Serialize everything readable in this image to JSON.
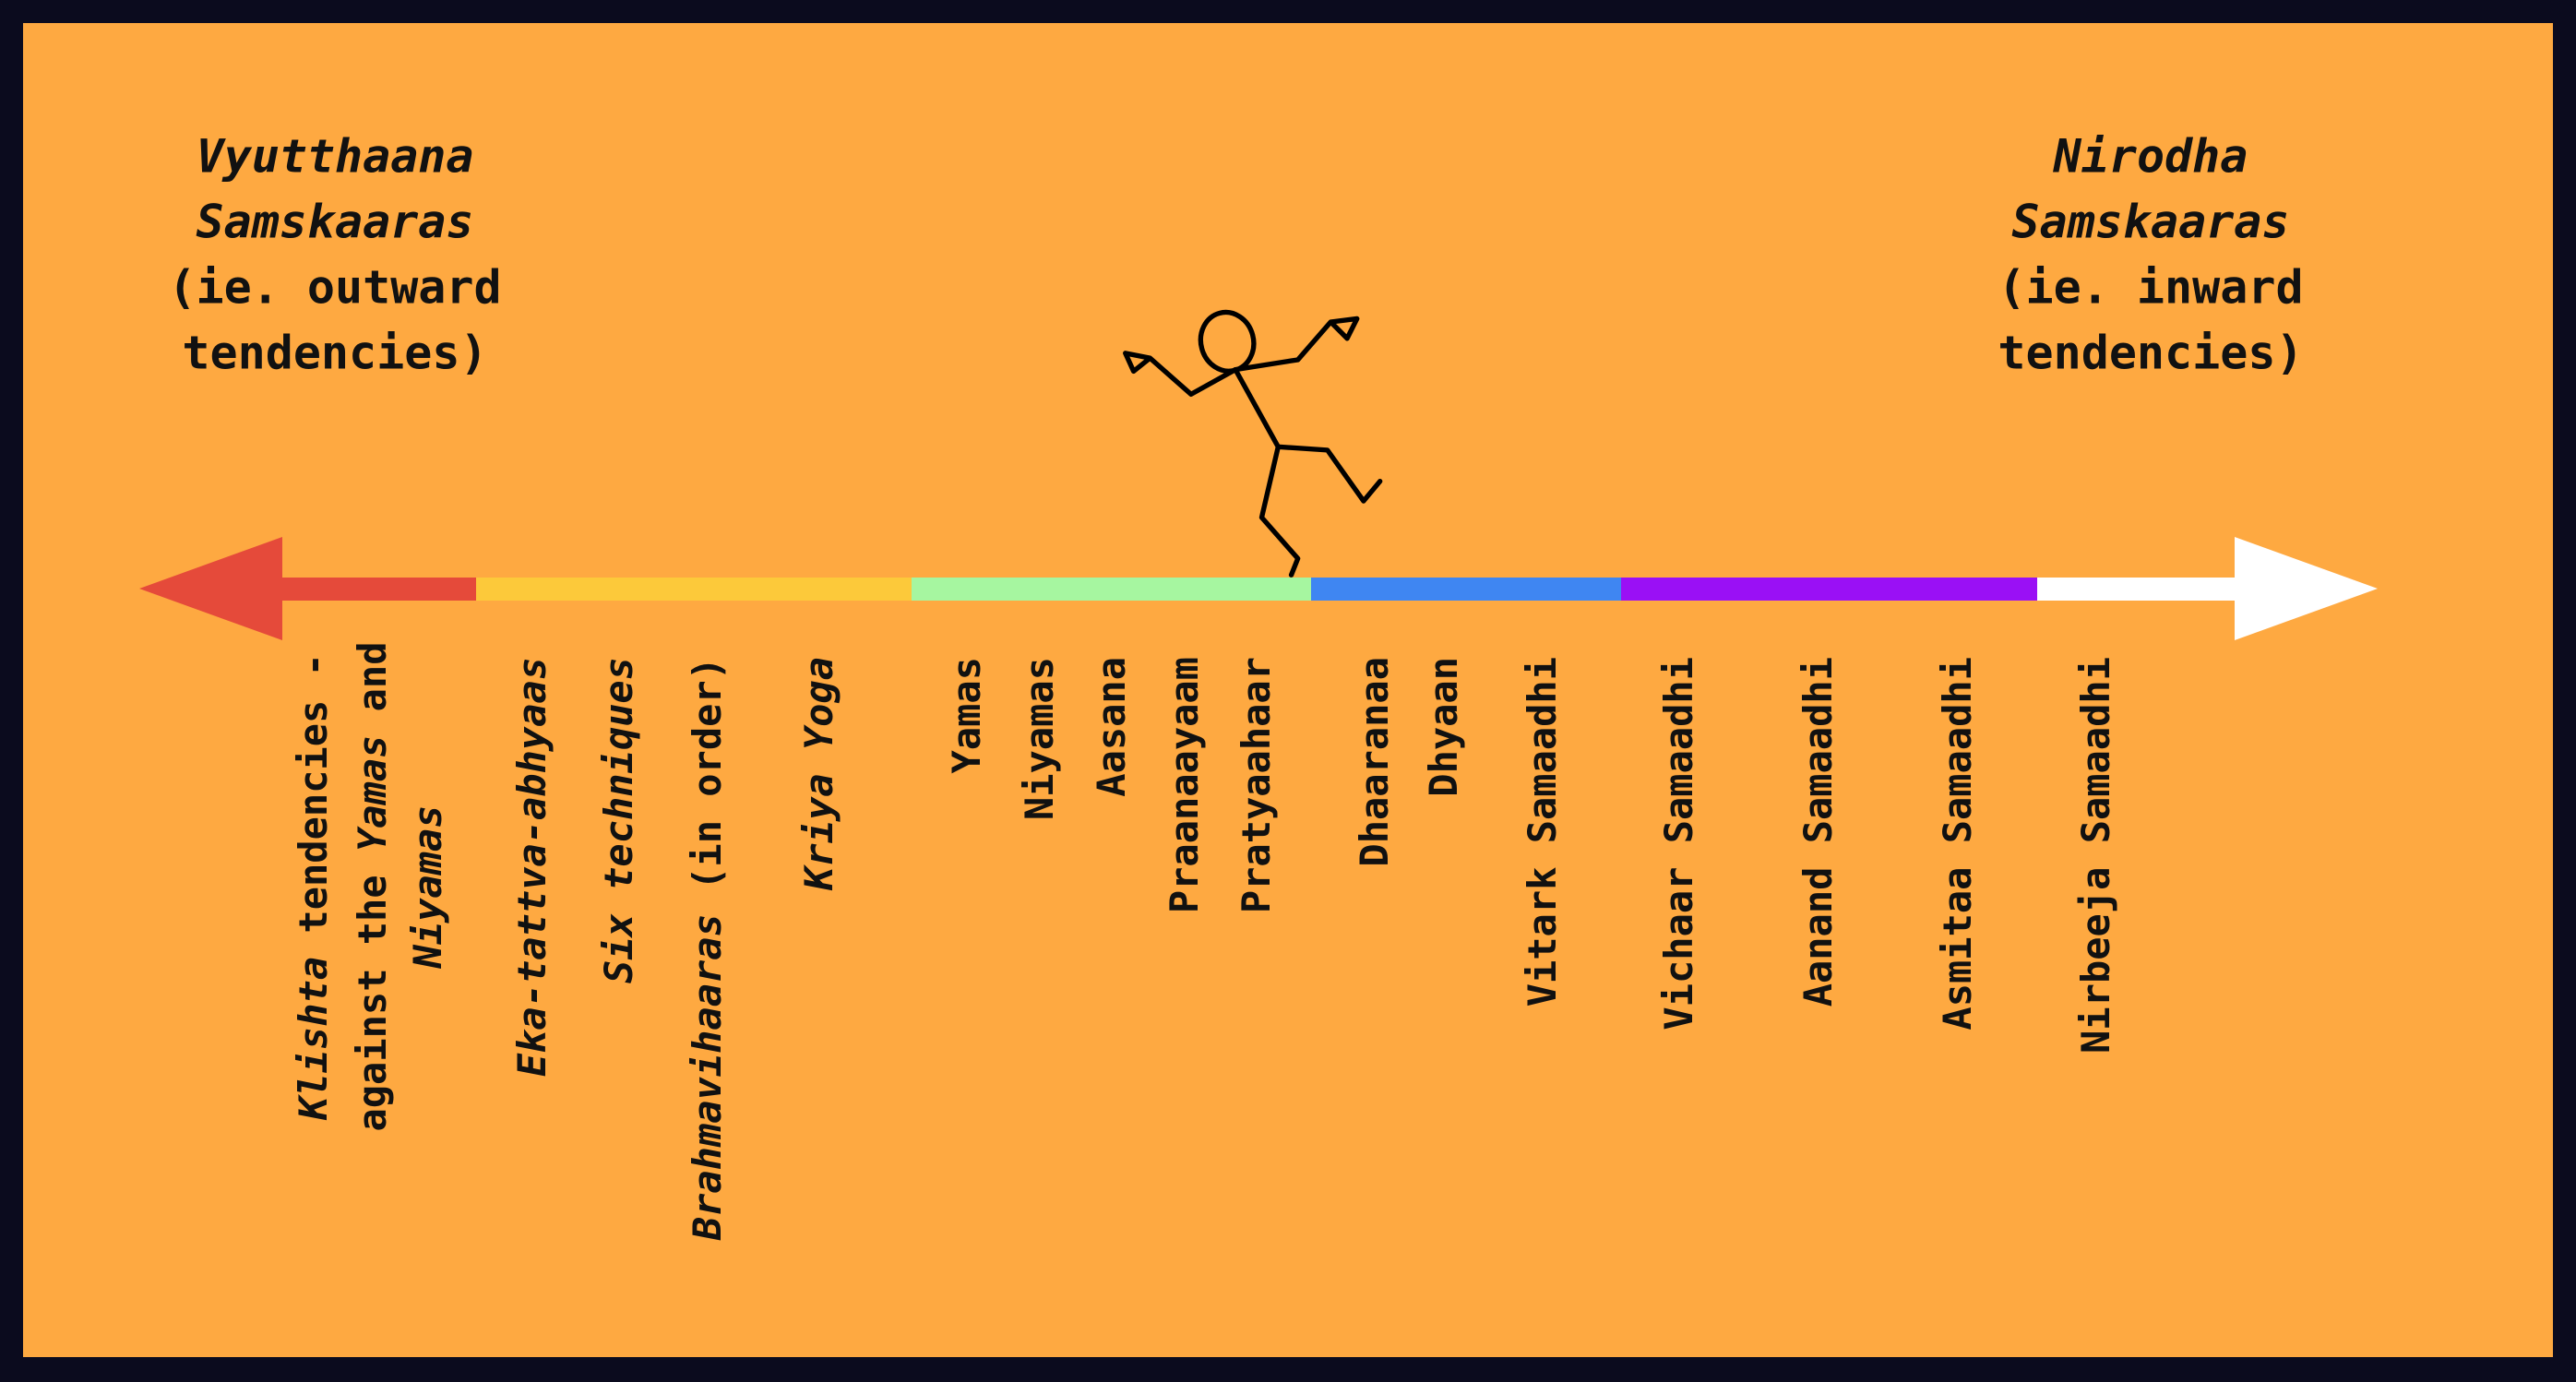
{
  "left_heading": {
    "lines": [
      {
        "text": "Vyutthaana",
        "italic": true
      },
      {
        "text": "Samskaaras",
        "italic": true
      },
      {
        "text": "(ie. outward"
      },
      {
        "text": "tendencies)"
      }
    ]
  },
  "right_heading": {
    "lines": [
      {
        "text": "Nirodha",
        "italic": true
      },
      {
        "text": "Samskaaras",
        "italic": true
      },
      {
        "text": "(ie. inward"
      },
      {
        "text": "tendencies)"
      }
    ]
  },
  "labels": [
    {
      "lines": [
        [
          {
            "text": "Klishta",
            "italic": true
          },
          {
            "text": " tendencies -"
          }
        ],
        [
          {
            "text": "against the "
          },
          {
            "text": "Yamas",
            "italic": true
          },
          {
            "text": " and"
          }
        ],
        [
          {
            "text": "Niyamas",
            "italic": true
          }
        ]
      ]
    },
    {
      "lines": [
        [
          {
            "text": "Eka-tattva-abhyaas",
            "italic": true
          }
        ]
      ]
    },
    {
      "lines": [
        [
          {
            "text": "Six techniques",
            "italic": true
          }
        ]
      ]
    },
    {
      "lines": [
        [
          {
            "text": "Brahmavihaaras",
            "italic": true
          },
          {
            "text": " (in order)"
          }
        ]
      ]
    },
    {
      "lines": [
        [
          {
            "text": "Kriya Yoga",
            "italic": true
          }
        ]
      ]
    },
    {
      "lines": [
        [
          {
            "text": "Yamas"
          }
        ]
      ]
    },
    {
      "lines": [
        [
          {
            "text": "Niyamas"
          }
        ]
      ]
    },
    {
      "lines": [
        [
          {
            "text": "Aasana"
          }
        ]
      ]
    },
    {
      "lines": [
        [
          {
            "text": "Praanaayaam"
          }
        ]
      ]
    },
    {
      "lines": [
        [
          {
            "text": "Pratyaahaar"
          }
        ]
      ]
    },
    {
      "lines": [
        [
          {
            "text": "Dhaaranaa"
          }
        ]
      ]
    },
    {
      "lines": [
        [
          {
            "text": "Dhyaan"
          }
        ]
      ]
    },
    {
      "lines": [
        [
          {
            "text": "Vitark Samaadhi"
          }
        ]
      ]
    },
    {
      "lines": [
        [
          {
            "text": "Vichaar Samaadhi"
          }
        ]
      ]
    },
    {
      "lines": [
        [
          {
            "text": "Aanand Samaadhi"
          }
        ]
      ]
    },
    {
      "lines": [
        [
          {
            "text": "Asmitaa Samaadhi"
          }
        ]
      ]
    },
    {
      "lines": [
        [
          {
            "text": "Nirbeeja Samaadhi"
          }
        ]
      ]
    }
  ]
}
